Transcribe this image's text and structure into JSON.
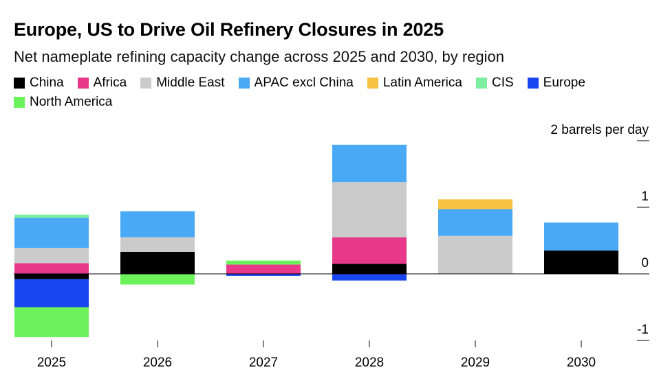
{
  "title": "Europe, US to Drive Oil Refinery Closures in 2025",
  "subtitle": "Net nameplate refining capacity change across 2025 and 2030, by region",
  "chart_data": {
    "type": "bar",
    "stacked": true,
    "title": "Europe, US to Drive Oil Refinery Closures in 2025",
    "subtitle": "Net nameplate refining capacity change across 2025 and 2030, by region",
    "unit_label": "2 barrels per day",
    "categories": [
      "2025",
      "2026",
      "2027",
      "2028",
      "2029",
      "2030"
    ],
    "y_ticks": [
      {
        "value": 2,
        "label": "2 barrels per day"
      },
      {
        "value": 1,
        "label": "1"
      },
      {
        "value": 0,
        "label": "0"
      },
      {
        "value": -1,
        "label": "-1"
      }
    ],
    "ylim": [
      -1.05,
      2.05
    ],
    "grid": false,
    "legend_position": "top",
    "series": [
      {
        "name": "China",
        "color": "#000000",
        "values": [
          -0.08,
          0.33,
          0,
          0.15,
          0,
          0.35
        ]
      },
      {
        "name": "Africa",
        "color": "#e8388a",
        "values": [
          0.16,
          0,
          0.14,
          0.4,
          0,
          0
        ]
      },
      {
        "name": "Middle East",
        "color": "#cbcbcb",
        "values": [
          0.23,
          0.22,
          0,
          0.83,
          0.57,
          0
        ]
      },
      {
        "name": "APAC excl China",
        "color": "#4aa9f4",
        "values": [
          0.45,
          0.39,
          0,
          0.56,
          0.4,
          0.42
        ]
      },
      {
        "name": "Latin America",
        "color": "#f5c242",
        "values": [
          0,
          0,
          0,
          0,
          0.15,
          0
        ]
      },
      {
        "name": "CIS",
        "color": "#7ceea0",
        "values": [
          0.05,
          0,
          0,
          0,
          0,
          0
        ]
      },
      {
        "name": "Europe",
        "color": "#1a46f2",
        "values": [
          -0.42,
          0,
          -0.03,
          -0.1,
          0,
          0
        ]
      },
      {
        "name": "North America",
        "color": "#6cf25a",
        "values": [
          -0.45,
          -0.16,
          0.06,
          0,
          0,
          0
        ]
      }
    ]
  }
}
